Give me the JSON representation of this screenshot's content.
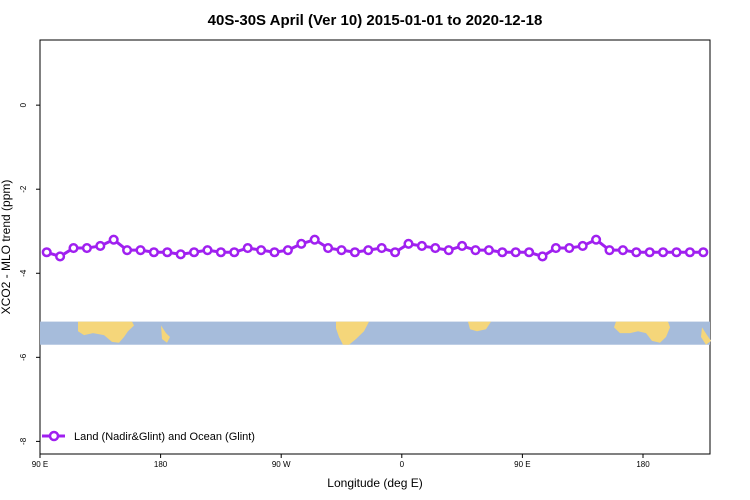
{
  "chart_data": {
    "type": "line",
    "title": "40S-30S April (Ver 10)   2015-01-01 to 2020-12-18",
    "xlabel": "Longitude (deg E)",
    "ylabel": "XCO2 - MLO trend (ppm)",
    "xlim": [
      90,
      590
    ],
    "ylim": [
      -8.3,
      1.55
    ],
    "x_ticks": [
      {
        "value": 90,
        "label": "90 E"
      },
      {
        "value": 180,
        "label": "180"
      },
      {
        "value": 270,
        "label": "90 W"
      },
      {
        "value": 360,
        "label": "0"
      },
      {
        "value": 450,
        "label": "90 E"
      },
      {
        "value": 540,
        "label": "180"
      }
    ],
    "y_ticks": [
      {
        "value": 0,
        "label": "0"
      },
      {
        "value": -2,
        "label": "-2"
      },
      {
        "value": -4,
        "label": "-4"
      },
      {
        "value": -6,
        "label": "-6"
      },
      {
        "value": -8,
        "label": "-8"
      }
    ],
    "series": [
      {
        "name": "Land (Nadir&Glint) and Ocean (Glint)",
        "color": "#a020f0",
        "x": [
          95,
          105,
          115,
          125,
          135,
          145,
          155,
          165,
          175,
          185,
          195,
          205,
          215,
          225,
          235,
          245,
          255,
          265,
          275,
          285,
          295,
          305,
          315,
          325,
          335,
          345,
          355,
          365,
          375,
          385,
          395,
          405,
          415,
          425,
          435,
          445,
          455,
          465,
          475,
          485,
          495,
          505,
          515,
          525,
          535,
          545,
          555,
          565,
          575,
          585
        ],
        "y": [
          -3.5,
          -3.6,
          -3.4,
          -3.4,
          -3.35,
          -3.2,
          -3.45,
          -3.45,
          -3.5,
          -3.5,
          -3.55,
          -3.5,
          -3.45,
          -3.5,
          -3.5,
          -3.4,
          -3.45,
          -3.5,
          -3.45,
          -3.3,
          -3.2,
          -3.4,
          -3.45,
          -3.5,
          -3.45,
          -3.4,
          -3.5,
          -3.3,
          -3.35,
          -3.4,
          -3.45,
          -3.35,
          -3.45,
          -3.45,
          -3.5,
          -3.5,
          -3.5,
          -3.6,
          -3.4,
          -3.4,
          -3.35,
          -3.2,
          -3.45,
          -3.45,
          -3.5,
          -3.5,
          -3.5,
          -3.5,
          -3.5,
          -3.5
        ]
      }
    ],
    "map_strip": {
      "y_range": [
        -5.7,
        -5.15
      ],
      "ocean_color": "#a6bcdb",
      "land_color": "#f5d67a"
    },
    "legend_position": "bottom-left",
    "grid": false
  }
}
